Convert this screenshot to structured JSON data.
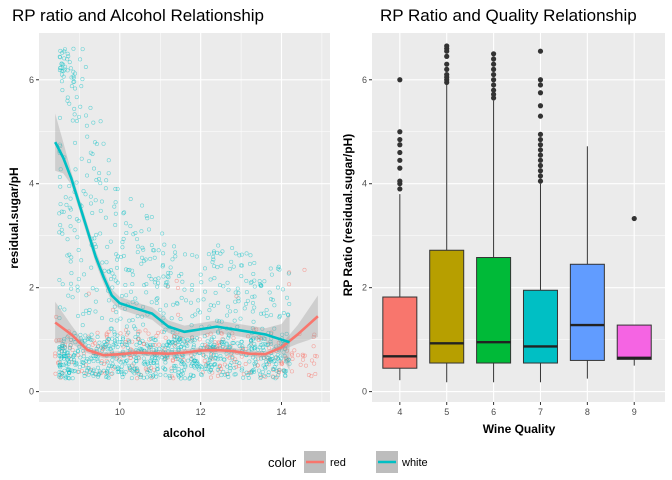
{
  "chart_data": [
    {
      "type": "scatter",
      "title": "RP ratio and Alcohol Relationship",
      "xlabel": "alcohol",
      "ylabel": "residual.sugar/pH",
      "xlim": [
        8,
        15.2
      ],
      "ylim": [
        -0.2,
        6.9
      ],
      "xticks": [
        10,
        12,
        14
      ],
      "yticks": [
        0,
        2,
        4,
        6
      ],
      "grid": true,
      "series": [
        {
          "name": "red",
          "color": "#F8766D",
          "smooth": {
            "x": [
              8.4,
              8.8,
              9.2,
              9.6,
              10.0,
              10.4,
              10.8,
              11.2,
              11.6,
              12.0,
              12.4,
              12.8,
              13.2,
              13.6,
              14.0,
              14.4,
              14.9
            ],
            "y": [
              1.33,
              1.1,
              0.8,
              0.7,
              0.72,
              0.75,
              0.74,
              0.73,
              0.75,
              0.79,
              0.8,
              0.78,
              0.73,
              0.72,
              0.85,
              1.1,
              1.45
            ]
          }
        },
        {
          "name": "white",
          "color": "#00BFC4",
          "smooth": {
            "x": [
              8.4,
              8.6,
              8.8,
              9.0,
              9.2,
              9.4,
              9.6,
              9.8,
              10.0,
              10.4,
              10.8,
              11.2,
              11.6,
              12.0,
              12.4,
              12.8,
              13.2,
              13.6,
              14.0,
              14.2
            ],
            "y": [
              4.8,
              4.5,
              4.1,
              3.6,
              3.1,
              2.6,
              2.2,
              1.85,
              1.7,
              1.6,
              1.5,
              1.25,
              1.15,
              1.2,
              1.25,
              1.2,
              1.15,
              1.1,
              1.0,
              0.95
            ]
          }
        }
      ]
    },
    {
      "type": "box",
      "title": "RP Ratio and Quality Relationship",
      "xlabel": "Wine Quality",
      "ylabel": "RP Ratio (residual.sugar/pH)",
      "ylim": [
        -0.2,
        6.9
      ],
      "yticks": [
        0,
        2,
        4,
        6
      ],
      "categories": [
        "4",
        "5",
        "6",
        "7",
        "8",
        "9"
      ],
      "grid": true,
      "boxes": [
        {
          "q1": 0.45,
          "median": 0.68,
          "q3": 1.82,
          "whisker_low": 0.22,
          "whisker_high": 3.8,
          "outliers": [
            3.9,
            4.0,
            4.05,
            4.3,
            4.45,
            4.6,
            4.75,
            4.85,
            5.0,
            6.0
          ]
        },
        {
          "q1": 0.55,
          "median": 0.93,
          "q3": 2.72,
          "whisker_low": 0.18,
          "whisker_high": 5.92,
          "outliers": [
            5.95,
            6.0,
            6.05,
            6.1,
            6.2,
            6.3,
            6.45,
            6.55,
            6.6,
            6.65
          ]
        },
        {
          "q1": 0.55,
          "median": 0.95,
          "q3": 2.58,
          "whisker_low": 0.18,
          "whisker_high": 5.6,
          "outliers": [
            5.65,
            5.72,
            5.8,
            5.9,
            6.0,
            6.1,
            6.2,
            6.3,
            6.4,
            6.5
          ]
        },
        {
          "q1": 0.55,
          "median": 0.87,
          "q3": 1.95,
          "whisker_low": 0.18,
          "whisker_high": 4.0,
          "outliers": [
            4.05,
            4.15,
            4.25,
            4.35,
            4.45,
            4.55,
            4.65,
            4.75,
            4.85,
            4.95,
            5.3,
            5.5,
            5.75,
            5.9,
            6.0,
            6.55
          ]
        },
        {
          "q1": 0.6,
          "median": 1.28,
          "q3": 2.45,
          "whisker_low": 0.25,
          "whisker_high": 4.72,
          "outliers": []
        },
        {
          "q1": 0.62,
          "median": 0.65,
          "q3": 1.28,
          "whisker_low": 0.5,
          "whisker_high": 1.28,
          "outliers": [
            3.33
          ]
        }
      ],
      "fill_colors": [
        "#F8766D",
        "#B79F00",
        "#00BA38",
        "#00BFC4",
        "#619CFF",
        "#F564E3"
      ]
    }
  ],
  "legend": {
    "title": "color",
    "items": [
      {
        "label": "red",
        "color": "#F8766D"
      },
      {
        "label": "white",
        "color": "#00BFC4"
      }
    ]
  }
}
